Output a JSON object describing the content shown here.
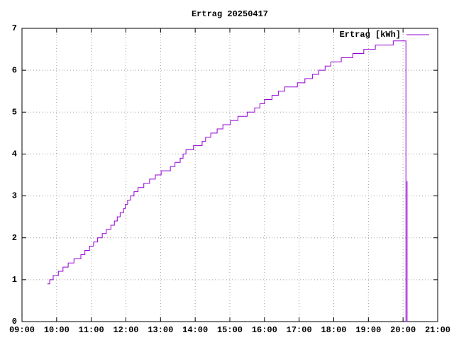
{
  "chart_data": {
    "type": "line",
    "title": "Ertrag 20250417",
    "x": [
      "09:44",
      "09:48",
      "09:54",
      "10:03",
      "10:11",
      "10:20",
      "10:30",
      "10:42",
      "10:49",
      "10:57",
      "11:04",
      "11:11",
      "11:19",
      "11:26",
      "11:34",
      "11:40",
      "11:45",
      "11:50",
      "11:56",
      "11:59",
      "12:03",
      "12:08",
      "12:14",
      "12:21",
      "12:31",
      "12:41",
      "12:51",
      "13:01",
      "13:17",
      "13:25",
      "13:34",
      "13:39",
      "13:44",
      "13:57",
      "14:12",
      "14:18",
      "14:27",
      "14:38",
      "14:48",
      "15:01",
      "15:14",
      "15:30",
      "15:43",
      "15:52",
      "16:00",
      "16:13",
      "16:24",
      "16:35",
      "16:57",
      "17:10",
      "17:23",
      "17:34",
      "17:45",
      "17:55",
      "18:13",
      "18:33",
      "18:52",
      "19:12",
      "19:43",
      "20:05",
      "20:07"
    ],
    "series": [
      {
        "name": "Ertrag [kWh]",
        "color": "#9400d3",
        "values": [
          0.9,
          1.0,
          1.1,
          1.2,
          1.3,
          1.4,
          1.5,
          1.6,
          1.7,
          1.8,
          1.9,
          2.0,
          2.1,
          2.2,
          2.3,
          2.4,
          2.5,
          2.6,
          2.7,
          2.8,
          2.9,
          3.0,
          3.1,
          3.2,
          3.3,
          3.4,
          3.5,
          3.6,
          3.7,
          3.8,
          3.9,
          4.0,
          4.1,
          4.2,
          4.3,
          4.4,
          4.5,
          4.6,
          4.7,
          4.8,
          4.9,
          5.0,
          5.1,
          5.2,
          5.3,
          5.4,
          5.5,
          5.6,
          5.7,
          5.8,
          5.9,
          6.0,
          6.1,
          6.2,
          6.3,
          6.4,
          6.5,
          6.6,
          6.7,
          0,
          3.35
        ]
      }
    ],
    "xlim": [
      "09:00",
      "21:00"
    ],
    "xticks": [
      "09:00",
      "10:00",
      "11:00",
      "12:00",
      "13:00",
      "14:00",
      "15:00",
      "16:00",
      "17:00",
      "18:00",
      "19:00",
      "20:00",
      "21:00"
    ],
    "ylim": [
      0,
      7
    ],
    "yticks": [
      0,
      1,
      2,
      3,
      4,
      5,
      6,
      7
    ],
    "grid": true,
    "legend": "top-right",
    "steps": true
  }
}
